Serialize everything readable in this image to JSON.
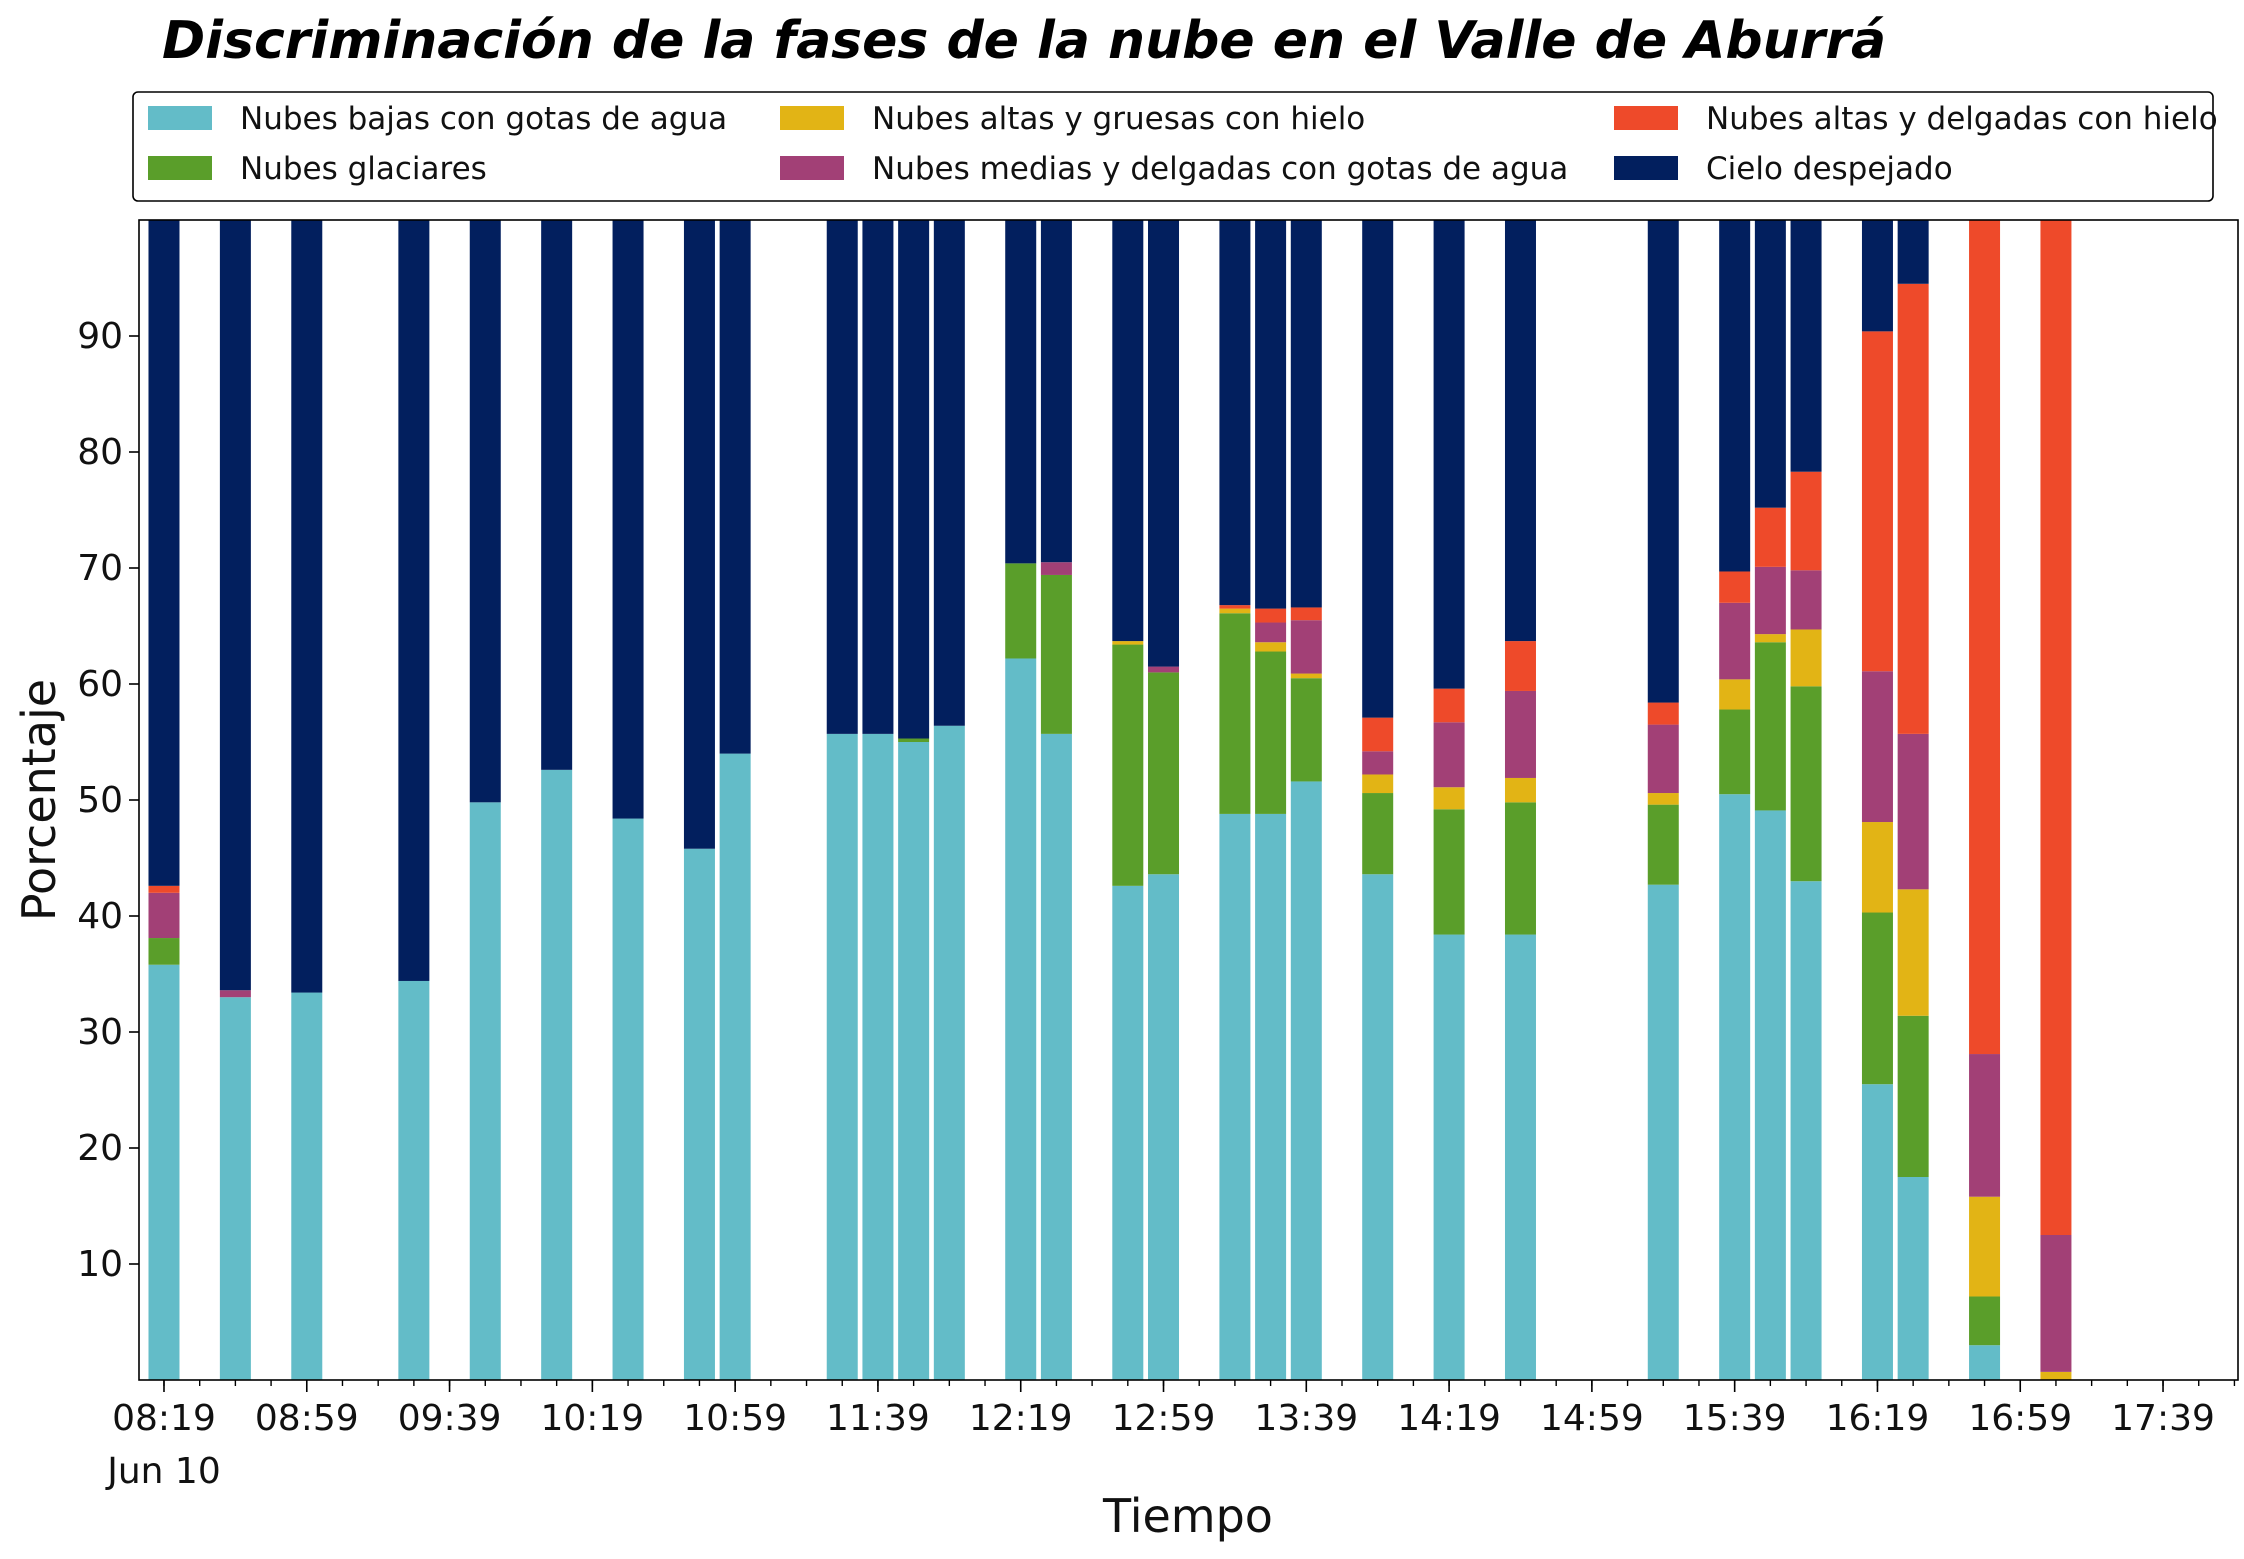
{
  "chart_data": {
    "type": "bar",
    "stacked": true,
    "title": "Discriminación de la fases de la nube en el Valle de Aburrá",
    "xlabel": "Tiempo",
    "ylabel": "Porcentaje",
    "ylim": [
      0,
      100
    ],
    "yticks": [
      10,
      20,
      30,
      40,
      50,
      60,
      70,
      80,
      90
    ],
    "xlim_minutes": [
      492,
      1080
    ],
    "xticks": [
      {
        "minute": 499,
        "label": "08:19",
        "sublabel": "Jun 10"
      },
      {
        "minute": 539,
        "label": "08:59"
      },
      {
        "minute": 579,
        "label": "09:39"
      },
      {
        "minute": 619,
        "label": "10:19"
      },
      {
        "minute": 659,
        "label": "10:59"
      },
      {
        "minute": 699,
        "label": "11:39"
      },
      {
        "minute": 739,
        "label": "12:19"
      },
      {
        "minute": 779,
        "label": "12:59"
      },
      {
        "minute": 819,
        "label": "13:39"
      },
      {
        "minute": 859,
        "label": "14:19"
      },
      {
        "minute": 899,
        "label": "14:59"
      },
      {
        "minute": 939,
        "label": "15:39"
      },
      {
        "minute": 979,
        "label": "16:19"
      },
      {
        "minute": 1019,
        "label": "16:59"
      },
      {
        "minute": 1059,
        "label": "17:39"
      }
    ],
    "minor_tick_step": 10,
    "legend_position": "top",
    "legend_columns": 3,
    "times": [
      "08:19",
      "08:39",
      "08:59",
      "09:29",
      "09:49",
      "10:09",
      "10:29",
      "10:49",
      "10:59",
      "11:29",
      "11:39",
      "11:49",
      "11:59",
      "12:19",
      "12:29",
      "12:49",
      "12:59",
      "13:19",
      "13:29",
      "13:39",
      "13:59",
      "14:19",
      "14:39",
      "15:19",
      "15:39",
      "15:49",
      "15:59",
      "16:19",
      "16:29",
      "16:49",
      "17:09"
    ],
    "series": [
      {
        "name": "Nubes bajas con gotas de agua",
        "color": "#63BCC8",
        "values": [
          35.8,
          33.0,
          33.4,
          34.4,
          49.8,
          52.6,
          48.4,
          45.8,
          54.0,
          55.7,
          55.7,
          55.0,
          56.4,
          62.2,
          55.7,
          42.6,
          43.6,
          48.8,
          48.8,
          51.6,
          43.6,
          38.4,
          38.4,
          42.7,
          50.5,
          49.1,
          43.0,
          25.5,
          17.5,
          3.0,
          0.0
        ]
      },
      {
        "name": "Nubes glaciares",
        "color": "#5A9E2A",
        "values": [
          2.3,
          0,
          0,
          0,
          0,
          0,
          0,
          0,
          0,
          0,
          0,
          0.3,
          0,
          8.2,
          13.7,
          20.8,
          17.4,
          17.3,
          14.0,
          8.9,
          7.0,
          10.8,
          11.4,
          6.9,
          7.3,
          14.5,
          16.8,
          14.8,
          13.9,
          4.2,
          0.0
        ]
      },
      {
        "name": "Nubes altas y gruesas con hielo",
        "color": "#E2B415",
        "values": [
          0,
          0,
          0,
          0,
          0,
          0,
          0,
          0,
          0,
          0,
          0,
          0,
          0,
          0,
          0,
          0.3,
          0,
          0.4,
          0.8,
          0.4,
          1.6,
          1.9,
          2.1,
          1.0,
          2.6,
          0.7,
          4.9,
          7.8,
          10.9,
          8.6,
          0.7
        ]
      },
      {
        "name": "Nubes medias y delgadas con gotas de agua",
        "color": "#A24076",
        "values": [
          3.9,
          0.6,
          0,
          0,
          0,
          0,
          0,
          0,
          0,
          0,
          0,
          0,
          0,
          0,
          1.1,
          0,
          0.5,
          0,
          1.7,
          4.6,
          2.0,
          5.6,
          7.5,
          5.9,
          6.6,
          5.8,
          5.1,
          13.0,
          13.4,
          12.3,
          11.8
        ]
      },
      {
        "name": "Nubes altas y delgadas con hielo",
        "color": "#EE4A2A",
        "values": [
          0.6,
          0,
          0,
          0,
          0,
          0,
          0,
          0,
          0,
          0,
          0,
          0,
          0,
          0,
          0,
          0,
          0,
          0.3,
          1.2,
          1.1,
          2.9,
          2.9,
          4.3,
          1.9,
          2.7,
          5.1,
          8.5,
          29.3,
          38.8,
          71.9,
          87.5
        ]
      },
      {
        "name": "Cielo despejado",
        "color": "#021F5E",
        "values": [
          57.4,
          66.4,
          66.6,
          65.6,
          50.2,
          47.4,
          51.6,
          54.2,
          46.0,
          44.3,
          44.3,
          44.7,
          43.6,
          29.6,
          29.5,
          36.3,
          38.5,
          33.2,
          33.5,
          33.4,
          42.9,
          40.4,
          36.3,
          41.6,
          30.3,
          24.8,
          21.7,
          9.6,
          5.5,
          0,
          0
        ]
      }
    ]
  }
}
